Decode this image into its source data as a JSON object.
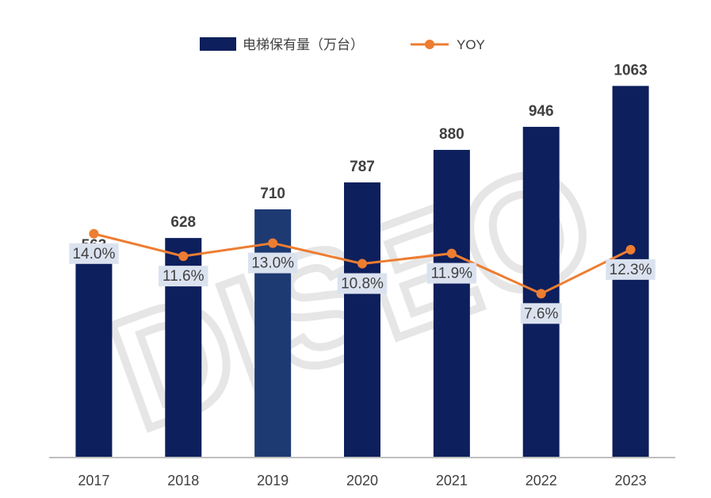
{
  "chart_data": {
    "type": "bar",
    "categories": [
      "2017",
      "2018",
      "2019",
      "2020",
      "2021",
      "2022",
      "2023"
    ],
    "series": [
      {
        "name": "电梯保有量（万台）",
        "type": "bar",
        "values": [
          563,
          628,
          710,
          787,
          880,
          946,
          1063
        ],
        "labels": [
          "563",
          "628",
          "710",
          "787",
          "880",
          "946",
          "1063"
        ]
      },
      {
        "name": "YOY",
        "type": "line",
        "values": [
          14.0,
          11.6,
          13.0,
          10.8,
          11.9,
          7.6,
          12.3
        ],
        "labels": [
          "14.0%",
          "11.6%",
          "13.0%",
          "10.8%",
          "11.9%",
          "7.6%",
          "12.3%"
        ],
        "unit": "%"
      }
    ],
    "ylim": [
      0,
      1150
    ],
    "yoy_range": [
      0,
      100
    ],
    "grid": false,
    "legend": "top-center",
    "watermark": "DISEO",
    "colors": {
      "bar": "#0d1f5c",
      "line": "#ed7d31",
      "label_box": "#dbe2ef",
      "axis": "#bfbfbf",
      "text": "#404040"
    }
  }
}
